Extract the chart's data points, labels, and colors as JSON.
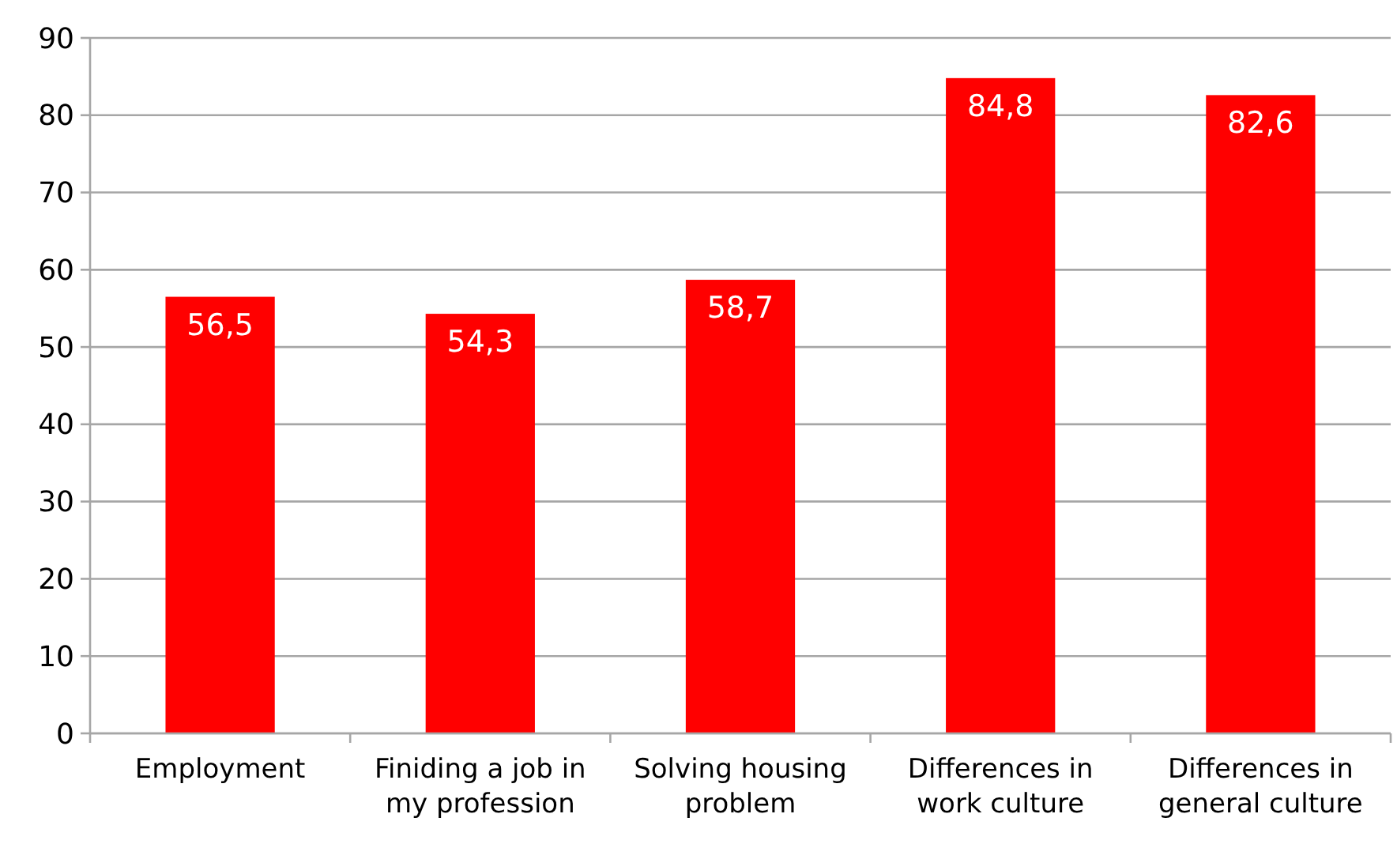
{
  "chart_data": {
    "type": "bar",
    "categories": [
      "Employment",
      "Finiding a job in my profession",
      "Solving housing problem",
      "Differences in work culture",
      "Differences in general culture"
    ],
    "values": [
      56.5,
      54.3,
      58.7,
      84.8,
      82.6
    ],
    "value_labels": [
      "56,5",
      "54,3",
      "58,7",
      "84,8",
      "82,6"
    ],
    "color": "#ff0000",
    "ylim": [
      0,
      90
    ],
    "yticks": [
      0,
      10,
      20,
      30,
      40,
      50,
      60,
      70,
      80,
      90
    ],
    "grid": "y"
  }
}
